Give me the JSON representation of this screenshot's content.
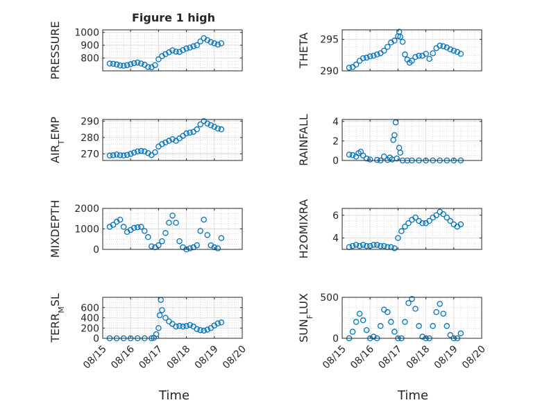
{
  "figure": {
    "title": "Figure 1 high",
    "xlabel": "Time"
  },
  "x_dates": [
    "08/15",
    "08/16",
    "08/17",
    "08/18",
    "08/19",
    "08/20"
  ],
  "chart_data": [
    {
      "type": "scatter",
      "ylabel": "PRESSURE",
      "ylabel_sub": "",
      "ylim": [
        700,
        1020
      ],
      "yticks": [
        800,
        900,
        1000
      ],
      "grid": true,
      "series": [
        {
          "x": [
            "08/15 06:00",
            "08/15 09:00",
            "08/15 12:00",
            "08/15 15:00",
            "08/15 18:00",
            "08/15 21:00",
            "08/16 00:00",
            "08/16 03:00",
            "08/16 06:00",
            "08/16 09:00",
            "08/16 12:00",
            "08/16 15:00",
            "08/16 18:00",
            "08/16 21:00",
            "08/17 00:00",
            "08/17 03:00",
            "08/17 06:00",
            "08/17 09:00",
            "08/17 12:00",
            "08/17 15:00",
            "08/17 18:00",
            "08/17 21:00",
            "08/18 00:00",
            "08/18 03:00",
            "08/18 06:00",
            "08/18 09:00",
            "08/18 12:00",
            "08/18 15:00",
            "08/18 18:00",
            "08/18 21:00",
            "08/19 00:00",
            "08/19 03:00",
            "08/19 06:00"
          ],
          "y": [
            757,
            755,
            750,
            742,
            740,
            745,
            752,
            760,
            765,
            757,
            748,
            730,
            728,
            745,
            790,
            815,
            830,
            845,
            860,
            850,
            848,
            862,
            875,
            882,
            892,
            900,
            930,
            955,
            940,
            925,
            915,
            905,
            915
          ]
        }
      ]
    },
    {
      "type": "scatter",
      "ylabel": "THETA",
      "ylabel_sub": "",
      "ylim": [
        290,
        296.5
      ],
      "yticks": [
        290,
        295
      ],
      "grid": true,
      "series": [
        {
          "x": [
            "08/15 06:00",
            "08/15 09:00",
            "08/15 12:00",
            "08/15 15:00",
            "08/15 18:00",
            "08/15 21:00",
            "08/16 00:00",
            "08/16 03:00",
            "08/16 06:00",
            "08/16 09:00",
            "08/16 12:00",
            "08/16 15:00",
            "08/16 18:00",
            "08/16 21:00",
            "08/17 00:00",
            "08/17 01:00",
            "08/17 02:00",
            "08/17 04:00",
            "08/17 06:00",
            "08/17 08:00",
            "08/17 10:00",
            "08/17 12:00",
            "08/17 15:00",
            "08/17 18:00",
            "08/17 21:00",
            "08/18 00:00",
            "08/18 03:00",
            "08/18 06:00",
            "08/18 09:00",
            "08/18 12:00",
            "08/18 15:00",
            "08/18 18:00",
            "08/18 21:00",
            "08/19 00:00",
            "08/19 03:00",
            "08/19 06:00"
          ],
          "y": [
            290.5,
            290.6,
            291.0,
            291.6,
            292.0,
            292.1,
            292.3,
            292.4,
            292.6,
            292.8,
            293.2,
            293.8,
            294.5,
            294.8,
            295.5,
            296.2,
            295.4,
            294.6,
            292.6,
            291.8,
            291.3,
            291.6,
            292.2,
            292.4,
            292.4,
            292.7,
            291.9,
            292.8,
            293.6,
            294.0,
            293.9,
            293.7,
            293.4,
            293.2,
            293.0,
            292.7
          ]
        }
      ]
    },
    {
      "type": "scatter",
      "ylabel": "AIR",
      "ylabel_sub": "T",
      "ylabel_rest": "EMP",
      "ylim": [
        266,
        291
      ],
      "yticks": [
        270,
        280,
        290
      ],
      "grid": true,
      "series": [
        {
          "x": [
            "08/15 06:00",
            "08/15 09:00",
            "08/15 12:00",
            "08/15 15:00",
            "08/15 18:00",
            "08/15 21:00",
            "08/16 00:00",
            "08/16 03:00",
            "08/16 06:00",
            "08/16 09:00",
            "08/16 12:00",
            "08/16 15:00",
            "08/16 18:00",
            "08/16 21:00",
            "08/17 00:00",
            "08/17 03:00",
            "08/17 06:00",
            "08/17 09:00",
            "08/17 12:00",
            "08/17 15:00",
            "08/17 18:00",
            "08/17 21:00",
            "08/18 00:00",
            "08/18 03:00",
            "08/18 06:00",
            "08/18 09:00",
            "08/18 12:00",
            "08/18 15:00",
            "08/18 18:00",
            "08/18 21:00",
            "08/19 00:00",
            "08/19 03:00",
            "08/19 06:00"
          ],
          "y": [
            269.0,
            269.2,
            269.6,
            269.2,
            269.0,
            269.4,
            270.0,
            270.8,
            271.5,
            271.8,
            271.5,
            270.5,
            269.3,
            271.0,
            274.5,
            276.0,
            277.0,
            278.0,
            279.0,
            278.0,
            279.5,
            281.0,
            282.5,
            283.0,
            283.5,
            285.0,
            288.0,
            290.0,
            288.5,
            287.5,
            286.5,
            285.5,
            285.0
          ]
        }
      ]
    },
    {
      "type": "scatter",
      "ylabel": "RAINFALL",
      "ylabel_sub": "",
      "ylim": [
        0,
        4.2
      ],
      "yticks": [
        0,
        2,
        4
      ],
      "grid": true,
      "series": [
        {
          "x": [
            "08/15 06:00",
            "08/15 09:00",
            "08/15 12:00",
            "08/15 14:00",
            "08/15 16:00",
            "08/15 18:00",
            "08/15 21:00",
            "08/16 00:00",
            "08/16 06:00",
            "08/16 09:00",
            "08/16 12:00",
            "08/16 15:00",
            "08/16 17:00",
            "08/16 19:00",
            "08/16 20:00",
            "08/16 21:00",
            "08/16 22:00",
            "08/16 23:00",
            "08/17 01:00",
            "08/17 02:00",
            "08/17 04:00",
            "08/17 08:00",
            "08/17 12:00",
            "08/17 18:00",
            "08/18 00:00",
            "08/18 06:00",
            "08/18 12:00",
            "08/18 18:00",
            "08/19 00:00",
            "08/19 06:00"
          ],
          "y": [
            0.6,
            0.55,
            0.4,
            0.75,
            0.9,
            0.5,
            0.2,
            0.1,
            0.05,
            0.0,
            0.4,
            0.05,
            0.3,
            0.1,
            2.1,
            2.6,
            3.9,
            0.2,
            1.3,
            0.8,
            0.0,
            0.0,
            0.0,
            0.0,
            0.0,
            0.0,
            0.0,
            0.0,
            0.0,
            0.0
          ]
        }
      ]
    },
    {
      "type": "scatter",
      "ylabel": "MIXDEPTH",
      "ylabel_sub": "",
      "ylim": [
        0,
        2000
      ],
      "yticks": [
        0,
        1000,
        2000
      ],
      "grid": true,
      "series": [
        {
          "x": [
            "08/15 06:00",
            "08/15 09:00",
            "08/15 12:00",
            "08/15 15:00",
            "08/15 18:00",
            "08/15 21:00",
            "08/16 00:00",
            "08/16 03:00",
            "08/16 06:00",
            "08/16 09:00",
            "08/16 12:00",
            "08/16 15:00",
            "08/16 18:00",
            "08/16 21:00",
            "08/17 00:00",
            "08/17 03:00",
            "08/17 06:00",
            "08/17 09:00",
            "08/17 12:00",
            "08/17 15:00",
            "08/17 18:00",
            "08/17 21:00",
            "08/18 00:00",
            "08/18 03:00",
            "08/18 06:00",
            "08/18 09:00",
            "08/18 12:00",
            "08/18 15:00",
            "08/18 18:00",
            "08/18 21:00",
            "08/19 00:00",
            "08/19 03:00",
            "08/19 06:00"
          ],
          "y": [
            1100,
            1200,
            1350,
            1450,
            1100,
            850,
            950,
            1050,
            1080,
            1100,
            900,
            600,
            150,
            100,
            200,
            400,
            800,
            1300,
            1650,
            1300,
            400,
            100,
            0,
            50,
            100,
            200,
            900,
            1450,
            700,
            200,
            100,
            50,
            550
          ]
        }
      ]
    },
    {
      "type": "scatter",
      "ylabel": "H2OMIXRA",
      "ylabel_sub": "",
      "ylim": [
        3,
        6.6
      ],
      "yticks": [
        4,
        6
      ],
      "grid": true,
      "series": [
        {
          "x": [
            "08/15 06:00",
            "08/15 09:00",
            "08/15 12:00",
            "08/15 15:00",
            "08/15 18:00",
            "08/15 21:00",
            "08/16 00:00",
            "08/16 03:00",
            "08/16 06:00",
            "08/16 09:00",
            "08/16 12:00",
            "08/16 15:00",
            "08/16 18:00",
            "08/16 21:00",
            "08/17 00:00",
            "08/17 03:00",
            "08/17 06:00",
            "08/17 09:00",
            "08/17 12:00",
            "08/17 15:00",
            "08/17 18:00",
            "08/17 21:00",
            "08/18 00:00",
            "08/18 03:00",
            "08/18 06:00",
            "08/18 09:00",
            "08/18 12:00",
            "08/18 15:00",
            "08/18 18:00",
            "08/18 21:00",
            "08/19 00:00",
            "08/19 03:00",
            "08/19 06:00"
          ],
          "y": [
            3.2,
            3.3,
            3.4,
            3.3,
            3.4,
            3.3,
            3.3,
            3.4,
            3.4,
            3.3,
            3.3,
            3.2,
            3.2,
            3.1,
            4.0,
            4.6,
            5.0,
            5.3,
            5.6,
            5.8,
            5.5,
            5.3,
            5.3,
            5.5,
            5.8,
            6.0,
            6.3,
            6.1,
            5.8,
            5.5,
            5.2,
            5.0,
            5.2
          ]
        }
      ]
    },
    {
      "type": "scatter",
      "ylabel": "TERR",
      "ylabel_sub": "M",
      "ylabel_rest": "SL",
      "ylim": [
        0,
        800
      ],
      "yticks": [
        0,
        200,
        400,
        600
      ],
      "grid": true,
      "series": [
        {
          "x": [
            "08/15 06:00",
            "08/15 12:00",
            "08/15 18:00",
            "08/16 00:00",
            "08/16 06:00",
            "08/16 12:00",
            "08/16 18:00",
            "08/16 20:00",
            "08/16 22:00",
            "08/17 00:00",
            "08/17 01:00",
            "08/17 02:00",
            "08/17 03:00",
            "08/17 06:00",
            "08/17 09:00",
            "08/17 12:00",
            "08/17 15:00",
            "08/17 18:00",
            "08/17 21:00",
            "08/18 00:00",
            "08/18 03:00",
            "08/18 06:00",
            "08/18 09:00",
            "08/18 12:00",
            "08/18 15:00",
            "08/18 18:00",
            "08/18 21:00",
            "08/19 00:00",
            "08/19 03:00",
            "08/19 06:00"
          ],
          "y": [
            0,
            0,
            0,
            0,
            0,
            0,
            0,
            10,
            80,
            200,
            450,
            750,
            550,
            400,
            330,
            280,
            230,
            240,
            230,
            240,
            260,
            230,
            180,
            160,
            150,
            170,
            200,
            250,
            290,
            310
          ]
        }
      ]
    },
    {
      "type": "scatter",
      "ylabel": "SUN",
      "ylabel_sub": "F",
      "ylabel_rest": "LUX",
      "ylim": [
        0,
        500
      ],
      "yticks": [
        0,
        500
      ],
      "grid": true,
      "series": [
        {
          "x": [
            "08/15 06:00",
            "08/15 09:00",
            "08/15 12:00",
            "08/15 15:00",
            "08/15 18:00",
            "08/15 21:00",
            "08/16 00:00",
            "08/16 03:00",
            "08/16 06:00",
            "08/16 09:00",
            "08/16 12:00",
            "08/16 15:00",
            "08/16 18:00",
            "08/16 21:00",
            "08/17 00:00",
            "08/17 03:00",
            "08/17 06:00",
            "08/17 09:00",
            "08/17 12:00",
            "08/17 15:00",
            "08/17 18:00",
            "08/17 21:00",
            "08/18 00:00",
            "08/18 03:00",
            "08/18 06:00",
            "08/18 09:00",
            "08/18 12:00",
            "08/18 15:00",
            "08/18 18:00",
            "08/18 21:00",
            "08/19 00:00",
            "08/19 03:00",
            "08/19 06:00"
          ],
          "y": [
            0,
            80,
            200,
            300,
            220,
            100,
            0,
            20,
            0,
            150,
            350,
            320,
            200,
            80,
            0,
            0,
            200,
            430,
            480,
            360,
            150,
            20,
            0,
            0,
            150,
            320,
            420,
            300,
            150,
            40,
            0,
            0,
            60
          ]
        }
      ]
    }
  ]
}
